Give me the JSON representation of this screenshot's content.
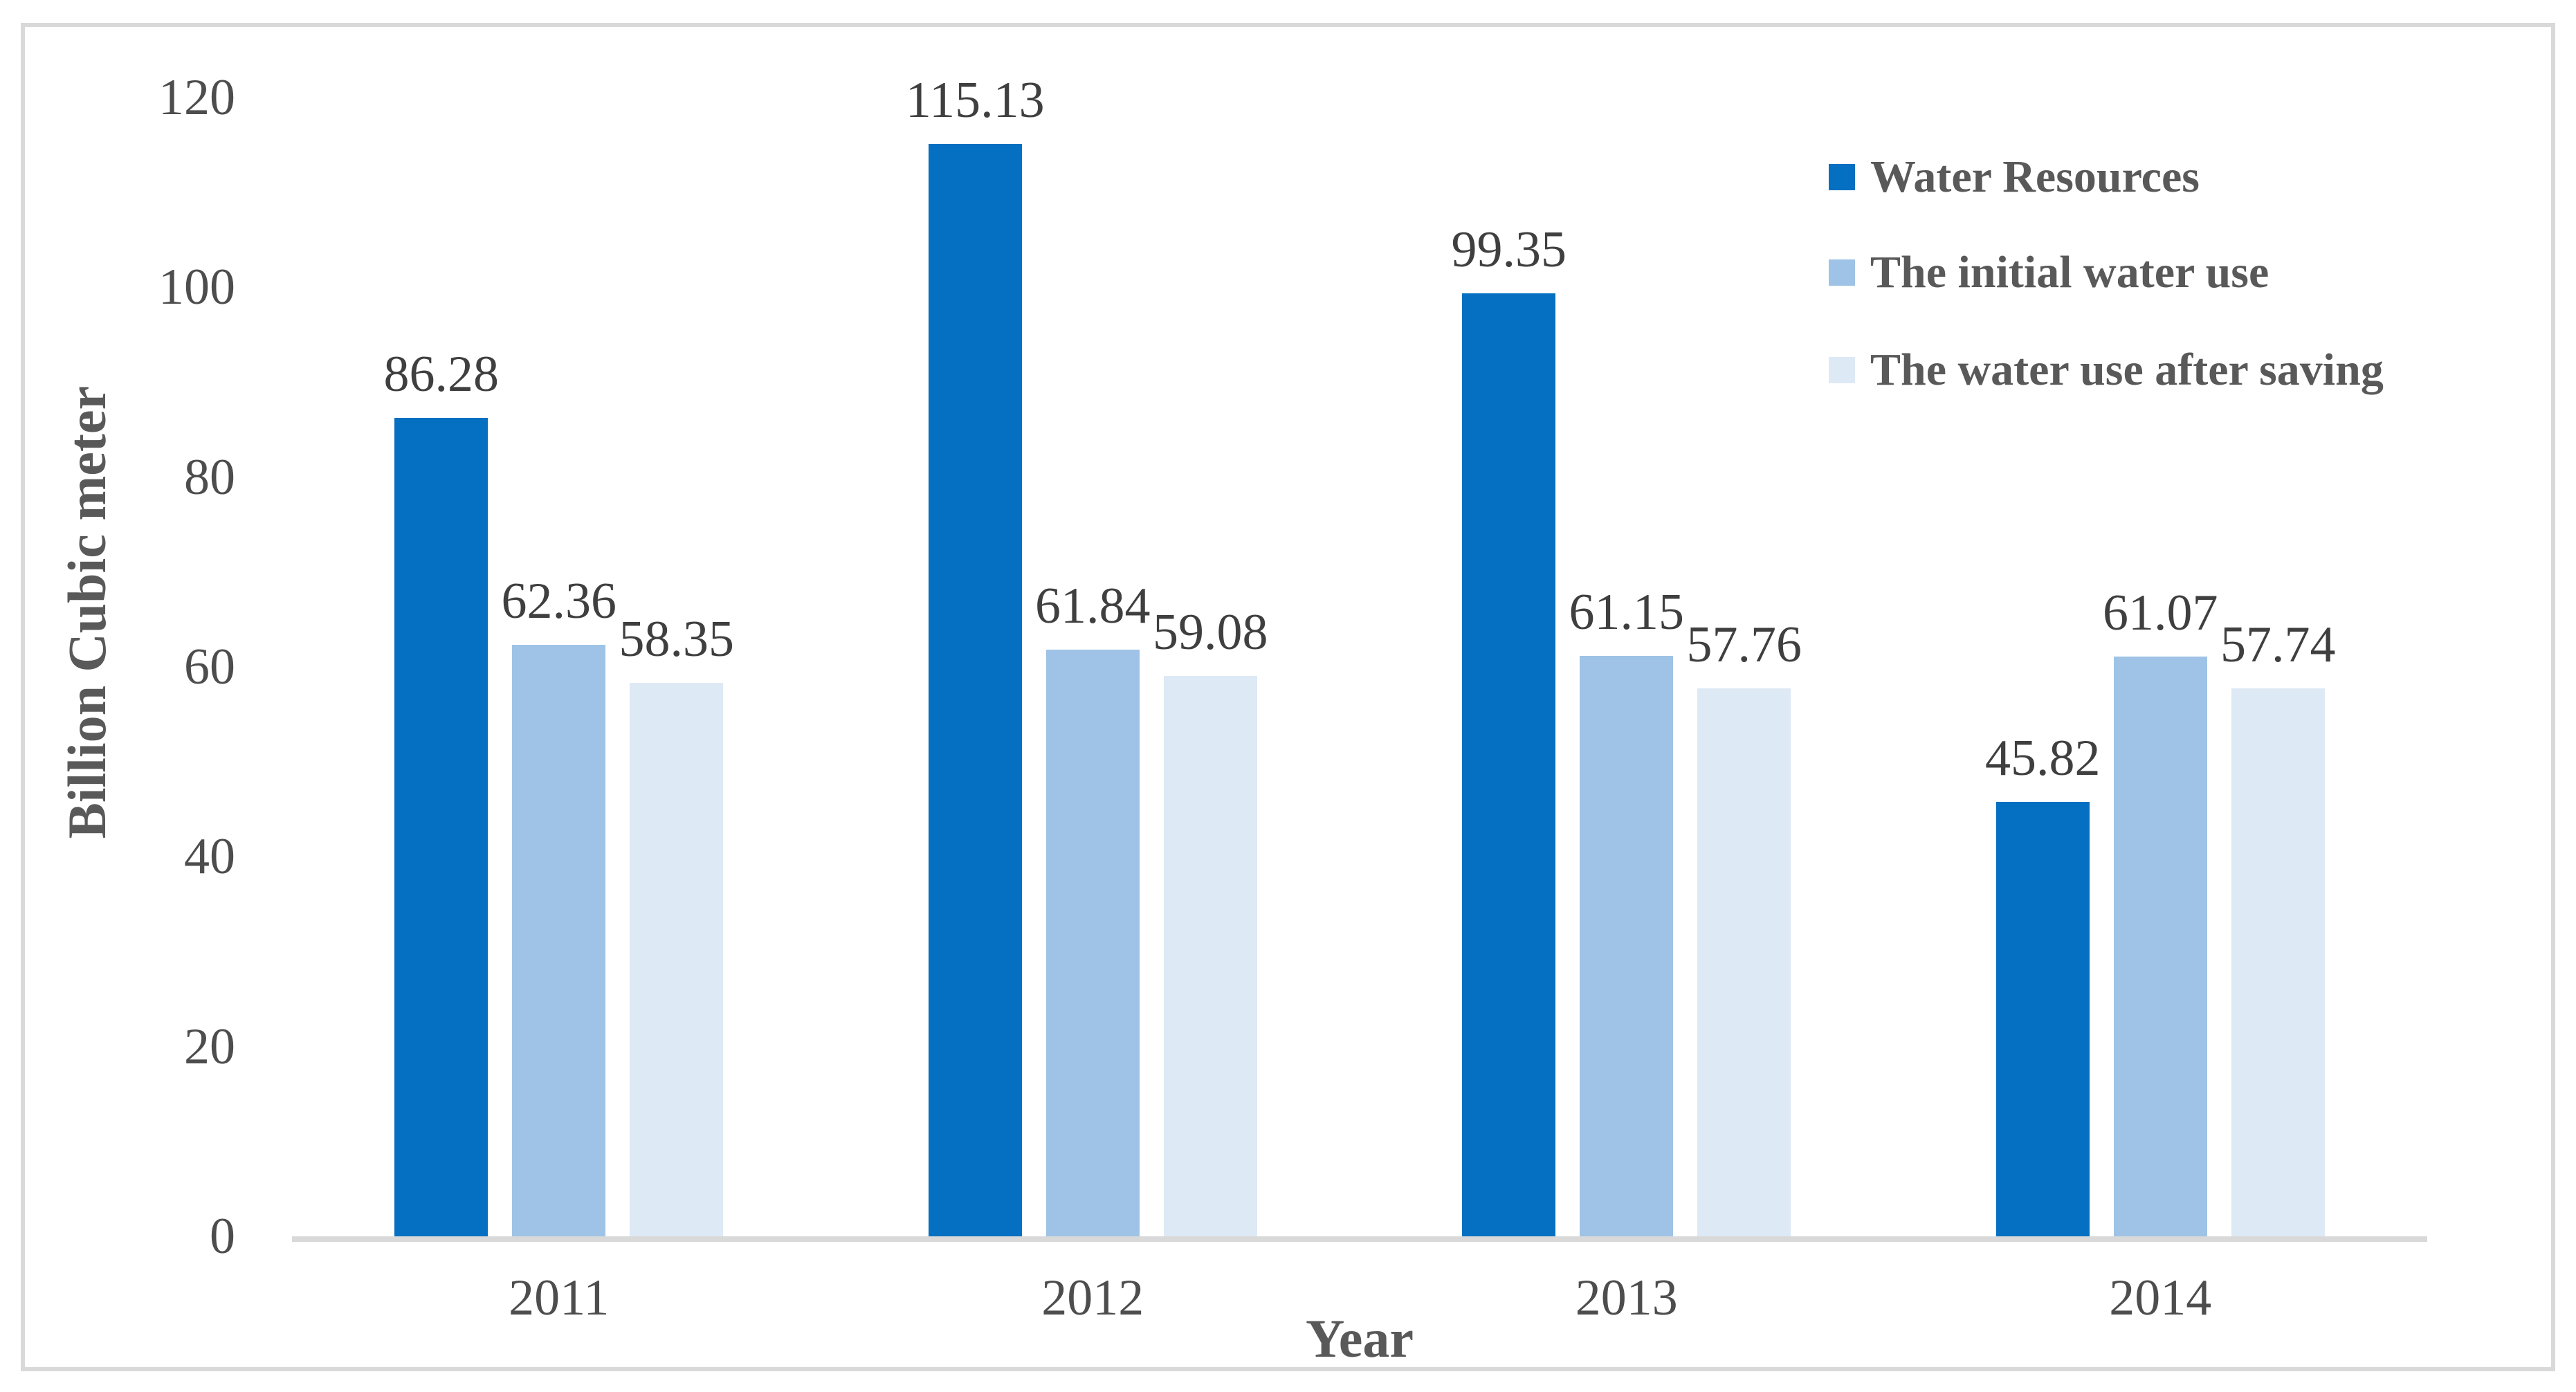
{
  "chart_data": {
    "type": "bar",
    "title": "",
    "categories": [
      "2011",
      "2012",
      "2013",
      "2014"
    ],
    "series": [
      {
        "name": "Water Resources",
        "color": "#0570c1",
        "values": [
          86.28,
          115.13,
          99.35,
          45.82
        ],
        "labels": [
          "86.28",
          "115.13",
          "99.35",
          "45.82"
        ]
      },
      {
        "name": "The initial water use",
        "color": "#9ec3e6",
        "values": [
          62.36,
          61.84,
          61.15,
          61.07
        ],
        "labels": [
          "62.36",
          "61.84",
          "61.15",
          "61.07"
        ]
      },
      {
        "name": "The water use after saving",
        "color": "#dde9f5",
        "values": [
          58.35,
          59.08,
          57.76,
          57.74
        ],
        "labels": [
          "58.35",
          "59.08",
          "57.76",
          "57.74"
        ]
      }
    ],
    "xlabel": "Year",
    "ylabel": "Billion Cubic meter",
    "ylim": [
      0,
      120
    ],
    "yticks": [
      "0",
      "20",
      "40",
      "60",
      "80",
      "100",
      "120"
    ],
    "grid": false,
    "data_labels": true,
    "legend_position": "upper right",
    "colors": {
      "axis_line": "#d9d9d9",
      "frame_border": "#d9d9d9",
      "tick_text": "#4d4d4d",
      "data_label_text": "#3f3f3f",
      "title_text": "#595959"
    }
  }
}
